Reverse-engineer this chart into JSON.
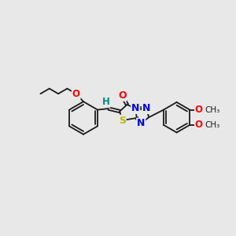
{
  "bg": "#e8e8e8",
  "bond_color": "#1a1a1a",
  "O_color": "#ff0000",
  "N_color": "#0000dd",
  "S_color": "#bbbb00",
  "H_color": "#008888",
  "lw": 1.3,
  "figsize": [
    3.0,
    3.0
  ],
  "dpi": 100,
  "xlim": [
    0,
    300
  ],
  "ylim": [
    0,
    300
  ],
  "methoxy_labels": [
    "O",
    "O"
  ],
  "methoxy_text": [
    "CH₃",
    "CH₃"
  ]
}
